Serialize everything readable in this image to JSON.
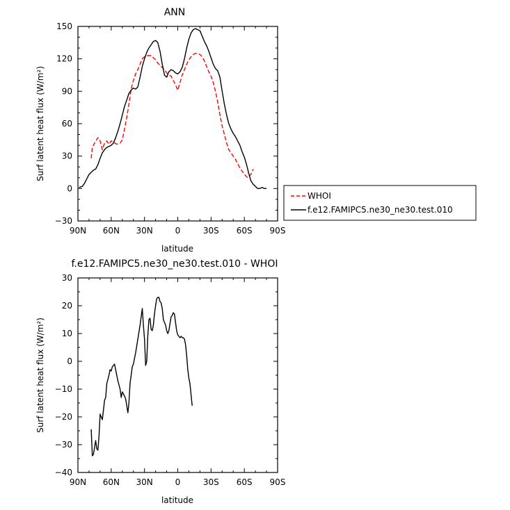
{
  "chart_data": [
    {
      "type": "line",
      "title": "ANN",
      "xlabel": "latitude",
      "ylabel": "Surf latent heat flux (W/m²)",
      "xlim": [
        90,
        -90
      ],
      "ylim": [
        -30,
        150
      ],
      "x_ticks": [
        90,
        60,
        30,
        0,
        -30,
        -60,
        -90
      ],
      "x_tick_labels": [
        "90N",
        "60N",
        "30N",
        "0",
        "30S",
        "60S",
        "90S"
      ],
      "y_ticks": [
        -30,
        0,
        30,
        60,
        90,
        120,
        150
      ],
      "y_tick_labels": [
        "−30",
        "0",
        "30",
        "60",
        "90",
        "120",
        "150"
      ],
      "legend": {
        "placement": "outside-right",
        "entries": [
          {
            "name": "WHOI",
            "color": "#ff0000",
            "dash": "dashed"
          },
          {
            "name": "f.e12.FAMIPC5.ne30_ne30.test.010",
            "color": "#000000",
            "dash": "solid"
          }
        ]
      },
      "series": [
        {
          "name": "WHOI",
          "color": "#ff0000",
          "dash": "dashed",
          "points": [
            [
              78,
              28
            ],
            [
              77,
              38
            ],
            [
              75,
              42
            ],
            [
              72,
              47
            ],
            [
              70,
              44
            ],
            [
              68,
              36
            ],
            [
              66,
              42
            ],
            [
              64,
              44
            ],
            [
              62,
              41
            ],
            [
              60,
              44
            ],
            [
              58,
              43
            ],
            [
              55,
              41
            ],
            [
              52,
              42
            ],
            [
              50,
              45
            ],
            [
              48,
              55
            ],
            [
              46,
              66
            ],
            [
              44,
              78
            ],
            [
              42,
              92
            ],
            [
              40,
              100
            ],
            [
              38,
              106
            ],
            [
              36,
              110
            ],
            [
              34,
              115
            ],
            [
              32,
              120
            ],
            [
              30,
              122
            ],
            [
              28,
              123
            ],
            [
              26,
              123
            ],
            [
              24,
              123
            ],
            [
              22,
              121
            ],
            [
              20,
              119
            ],
            [
              18,
              116
            ],
            [
              16,
              114
            ],
            [
              14,
              112
            ],
            [
              12,
              110
            ],
            [
              10,
              107
            ],
            [
              8,
              105
            ],
            [
              6,
              104
            ],
            [
              4,
              100
            ],
            [
              2,
              96
            ],
            [
              0,
              91
            ],
            [
              -2,
              98
            ],
            [
              -4,
              105
            ],
            [
              -6,
              110
            ],
            [
              -8,
              115
            ],
            [
              -10,
              119
            ],
            [
              -12,
              122
            ],
            [
              -14,
              124
            ],
            [
              -16,
              125
            ],
            [
              -18,
              125
            ],
            [
              -20,
              124
            ],
            [
              -22,
              122
            ],
            [
              -24,
              118
            ],
            [
              -26,
              113
            ],
            [
              -28,
              108
            ],
            [
              -30,
              104
            ],
            [
              -32,
              98
            ],
            [
              -34,
              90
            ],
            [
              -36,
              80
            ],
            [
              -38,
              68
            ],
            [
              -40,
              58
            ],
            [
              -42,
              50
            ],
            [
              -44,
              42
            ],
            [
              -46,
              36
            ],
            [
              -48,
              33
            ],
            [
              -50,
              30
            ],
            [
              -52,
              27
            ],
            [
              -54,
              23
            ],
            [
              -56,
              19
            ],
            [
              -58,
              16
            ],
            [
              -60,
              13
            ],
            [
              -62,
              11
            ],
            [
              -63,
              10
            ],
            [
              -65,
              12
            ],
            [
              -67,
              15
            ],
            [
              -68,
              18
            ]
          ]
        },
        {
          "name": "f.e12.FAMIPC5.ne30_ne30.test.010",
          "color": "#000000",
          "dash": "solid",
          "points": [
            [
              89,
              1
            ],
            [
              86,
              2
            ],
            [
              84,
              5
            ],
            [
              82,
              9
            ],
            [
              80,
              13
            ],
            [
              78,
              15
            ],
            [
              76,
              17
            ],
            [
              74,
              18
            ],
            [
              72,
              22
            ],
            [
              70,
              28
            ],
            [
              68,
              33
            ],
            [
              66,
              36
            ],
            [
              64,
              38
            ],
            [
              62,
              39
            ],
            [
              60,
              40
            ],
            [
              58,
              42
            ],
            [
              56,
              47
            ],
            [
              54,
              53
            ],
            [
              52,
              60
            ],
            [
              50,
              68
            ],
            [
              48,
              76
            ],
            [
              46,
              82
            ],
            [
              44,
              88
            ],
            [
              42,
              91
            ],
            [
              40,
              93
            ],
            [
              38,
              92
            ],
            [
              36,
              94
            ],
            [
              34,
              103
            ],
            [
              32,
              113
            ],
            [
              30,
              120
            ],
            [
              28,
              126
            ],
            [
              26,
              130
            ],
            [
              24,
              133
            ],
            [
              22,
              136
            ],
            [
              20,
              137
            ],
            [
              18,
              135
            ],
            [
              16,
              127
            ],
            [
              14,
              115
            ],
            [
              12,
              105
            ],
            [
              10,
              103
            ],
            [
              8,
              108
            ],
            [
              6,
              110
            ],
            [
              4,
              109
            ],
            [
              2,
              107
            ],
            [
              0,
              106
            ],
            [
              -2,
              108
            ],
            [
              -4,
              112
            ],
            [
              -6,
              120
            ],
            [
              -8,
              130
            ],
            [
              -10,
              138
            ],
            [
              -12,
              144
            ],
            [
              -14,
              147
            ],
            [
              -16,
              148
            ],
            [
              -18,
              147
            ],
            [
              -20,
              146
            ],
            [
              -22,
              141
            ],
            [
              -24,
              136
            ],
            [
              -26,
              132
            ],
            [
              -28,
              127
            ],
            [
              -30,
              121
            ],
            [
              -32,
              115
            ],
            [
              -34,
              111
            ],
            [
              -36,
              109
            ],
            [
              -38,
              103
            ],
            [
              -40,
              90
            ],
            [
              -42,
              78
            ],
            [
              -44,
              68
            ],
            [
              -46,
              60
            ],
            [
              -48,
              55
            ],
            [
              -50,
              51
            ],
            [
              -52,
              48
            ],
            [
              -54,
              44
            ],
            [
              -56,
              40
            ],
            [
              -58,
              34
            ],
            [
              -60,
              29
            ],
            [
              -62,
              22
            ],
            [
              -64,
              14
            ],
            [
              -66,
              7
            ],
            [
              -68,
              4
            ],
            [
              -70,
              2
            ],
            [
              -72,
              0
            ],
            [
              -74,
              0
            ],
            [
              -76,
              1
            ],
            [
              -78,
              0
            ],
            [
              -80,
              0
            ]
          ]
        }
      ]
    },
    {
      "type": "line",
      "title": "f.e12.FAMIPC5.ne30_ne30.test.010 - WHOI",
      "xlabel": "latitude",
      "ylabel": "Surf latent heat flux (W/m²)",
      "xlim": [
        90,
        -90
      ],
      "ylim": [
        -40,
        30
      ],
      "x_ticks": [
        90,
        60,
        30,
        0,
        -30,
        -60,
        -90
      ],
      "x_tick_labels": [
        "90N",
        "60N",
        "30N",
        "0",
        "30S",
        "60S",
        "90S"
      ],
      "y_ticks": [
        -40,
        -30,
        -20,
        -10,
        0,
        10,
        20,
        30
      ],
      "y_tick_labels": [
        "−40",
        "−30",
        "−20",
        "−10",
        "0",
        "10",
        "20",
        "30"
      ],
      "series": [
        {
          "name": "",
          "color": "#000000",
          "dash": "solid",
          "points": [
            [
              78,
              -24.5
            ],
            [
              77,
              -34
            ],
            [
              76,
              -33.5
            ],
            [
              74,
              -28.5
            ],
            [
              73,
              -31.5
            ],
            [
              72,
              -32
            ],
            [
              71,
              -27
            ],
            [
              70,
              -19
            ],
            [
              68,
              -21
            ],
            [
              66,
              -14
            ],
            [
              65,
              -13
            ],
            [
              64,
              -8
            ],
            [
              62,
              -5
            ],
            [
              61,
              -3
            ],
            [
              60,
              -3.5
            ],
            [
              59,
              -2
            ],
            [
              58,
              -1.5
            ],
            [
              57,
              -1
            ],
            [
              56,
              -3
            ],
            [
              55,
              -5
            ],
            [
              54,
              -7
            ],
            [
              52,
              -10
            ],
            [
              51,
              -13
            ],
            [
              50,
              -11
            ],
            [
              48,
              -12.5
            ],
            [
              47,
              -13.5
            ],
            [
              46,
              -16
            ],
            [
              45,
              -18.5
            ],
            [
              44,
              -15
            ],
            [
              43,
              -8
            ],
            [
              42,
              -5
            ],
            [
              41,
              -2
            ],
            [
              40,
              -1
            ],
            [
              38,
              3
            ],
            [
              36,
              8
            ],
            [
              34,
              13
            ],
            [
              33,
              16
            ],
            [
              32,
              19
            ],
            [
              31,
              13
            ],
            [
              30,
              8
            ],
            [
              29,
              -1.5
            ],
            [
              28,
              0
            ],
            [
              27,
              9
            ],
            [
              26,
              15
            ],
            [
              25,
              15.5
            ],
            [
              24,
              11.5
            ],
            [
              23,
              11
            ],
            [
              22,
              13
            ],
            [
              21,
              17
            ],
            [
              20,
              20
            ],
            [
              19,
              22.5
            ],
            [
              18,
              23
            ],
            [
              17,
              23
            ],
            [
              16,
              21.5
            ],
            [
              15,
              21
            ],
            [
              14,
              19
            ],
            [
              13,
              15
            ],
            [
              12,
              14
            ],
            [
              11,
              13
            ],
            [
              10,
              11
            ],
            [
              9,
              10
            ],
            [
              8,
              11
            ],
            [
              6,
              16
            ],
            [
              5,
              16.5
            ],
            [
              4,
              17.5
            ],
            [
              3,
              17
            ],
            [
              2,
              14
            ],
            [
              1,
              11
            ],
            [
              0,
              9.5
            ],
            [
              -1,
              9
            ],
            [
              -2,
              8.5
            ],
            [
              -3,
              9
            ],
            [
              -4,
              8.5
            ],
            [
              -5,
              8.5
            ],
            [
              -6,
              8
            ],
            [
              -7,
              6
            ],
            [
              -8,
              2
            ],
            [
              -9,
              -3
            ],
            [
              -10,
              -6
            ],
            [
              -11,
              -8
            ],
            [
              -12,
              -12
            ],
            [
              -13,
              -16
            ]
          ]
        }
      ]
    }
  ]
}
